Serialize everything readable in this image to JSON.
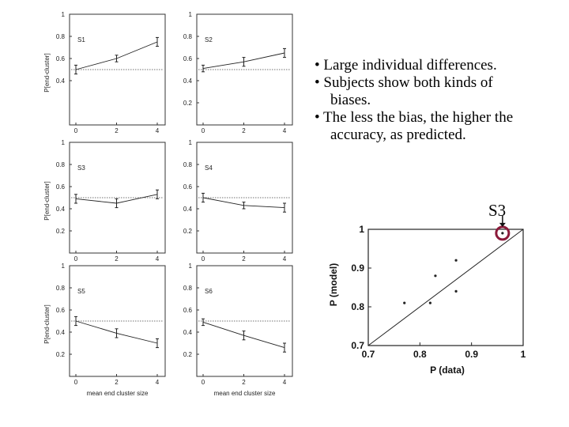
{
  "bullets": [
    {
      "text": "• Large individual differences."
    },
    {
      "text": "• Subjects show both kinds of",
      "cont": "biases."
    },
    {
      "text": "• The less the bias, the higher the",
      "cont": "accuracy, as predicted."
    }
  ],
  "callout": {
    "label": "S3"
  },
  "chart_data": [
    {
      "type": "line",
      "panel": "S1",
      "x": [
        0,
        2,
        4
      ],
      "values": [
        0.5,
        0.6,
        0.75
      ],
      "errors": [
        0.04,
        0.03,
        0.04
      ],
      "reference_line": 0.5,
      "ylabel": "P[end-cluster]",
      "xlabel": "",
      "xlim": [
        0,
        4
      ],
      "ylim": [
        0,
        1
      ],
      "yticks": [
        0.4,
        0.6,
        0.8,
        1
      ],
      "xticks": [
        0,
        2,
        4
      ]
    },
    {
      "type": "line",
      "panel": "S2",
      "x": [
        0,
        2,
        4
      ],
      "values": [
        0.51,
        0.57,
        0.65
      ],
      "errors": [
        0.03,
        0.04,
        0.04
      ],
      "reference_line": 0.5,
      "ylabel": "",
      "xlabel": "",
      "xlim": [
        0,
        4
      ],
      "ylim": [
        0,
        1
      ],
      "yticks": [
        0.2,
        0.4,
        0.6,
        0.8,
        1
      ],
      "xticks": [
        0,
        2,
        4
      ]
    },
    {
      "type": "line",
      "panel": "S3",
      "x": [
        0,
        2,
        4
      ],
      "values": [
        0.49,
        0.45,
        0.53
      ],
      "errors": [
        0.04,
        0.04,
        0.04
      ],
      "reference_line": 0.5,
      "ylabel": "P[end-cluster]",
      "xlabel": "",
      "xlim": [
        0,
        4
      ],
      "ylim": [
        0,
        1
      ],
      "yticks": [
        0.2,
        0.4,
        0.6,
        0.8,
        1
      ],
      "xticks": [
        0,
        2,
        4
      ]
    },
    {
      "type": "line",
      "panel": "S4",
      "x": [
        0,
        2,
        4
      ],
      "values": [
        0.5,
        0.43,
        0.41
      ],
      "errors": [
        0.04,
        0.03,
        0.04
      ],
      "reference_line": 0.5,
      "ylabel": "",
      "xlabel": "",
      "xlim": [
        0,
        4
      ],
      "ylim": [
        0,
        1
      ],
      "yticks": [
        0.2,
        0.4,
        0.6,
        0.8,
        1
      ],
      "xticks": [
        0,
        2,
        4
      ]
    },
    {
      "type": "line",
      "panel": "S5",
      "x": [
        0,
        2,
        4
      ],
      "values": [
        0.5,
        0.39,
        0.3
      ],
      "errors": [
        0.04,
        0.04,
        0.04
      ],
      "reference_line": 0.5,
      "ylabel": "P[end-cluster]",
      "xlabel": "mean end cluster size",
      "xlim": [
        0,
        4
      ],
      "ylim": [
        0,
        1
      ],
      "yticks": [
        0.2,
        0.4,
        0.6,
        0.8,
        1
      ],
      "xticks": [
        0,
        2,
        4
      ]
    },
    {
      "type": "line",
      "panel": "S6",
      "x": [
        0,
        2,
        4
      ],
      "values": [
        0.49,
        0.37,
        0.26
      ],
      "errors": [
        0.03,
        0.04,
        0.04
      ],
      "reference_line": 0.5,
      "ylabel": "",
      "xlabel": "mean end cluster size",
      "xlim": [
        0,
        4
      ],
      "ylim": [
        0,
        1
      ],
      "yticks": [
        0.2,
        0.4,
        0.6,
        0.8,
        1
      ],
      "xticks": [
        0,
        2,
        4
      ]
    },
    {
      "type": "scatter",
      "panel": "model-vs-data",
      "points": [
        [
          0.77,
          0.81
        ],
        [
          0.82,
          0.81
        ],
        [
          0.83,
          0.88
        ],
        [
          0.87,
          0.92
        ],
        [
          0.87,
          0.84
        ],
        [
          0.96,
          0.99
        ]
      ],
      "highlight_index": 5,
      "reference_line": "y=x",
      "xlabel": "P (data)",
      "ylabel": "P (model)",
      "xlim": [
        0.7,
        1
      ],
      "ylim": [
        0.7,
        1
      ],
      "xticks": [
        "0.7",
        "0.8",
        "0.9",
        "1"
      ],
      "yticks": [
        "0.7",
        "0.8",
        "0.9",
        "1"
      ],
      "highlight_color": "#8b1a3a"
    }
  ]
}
